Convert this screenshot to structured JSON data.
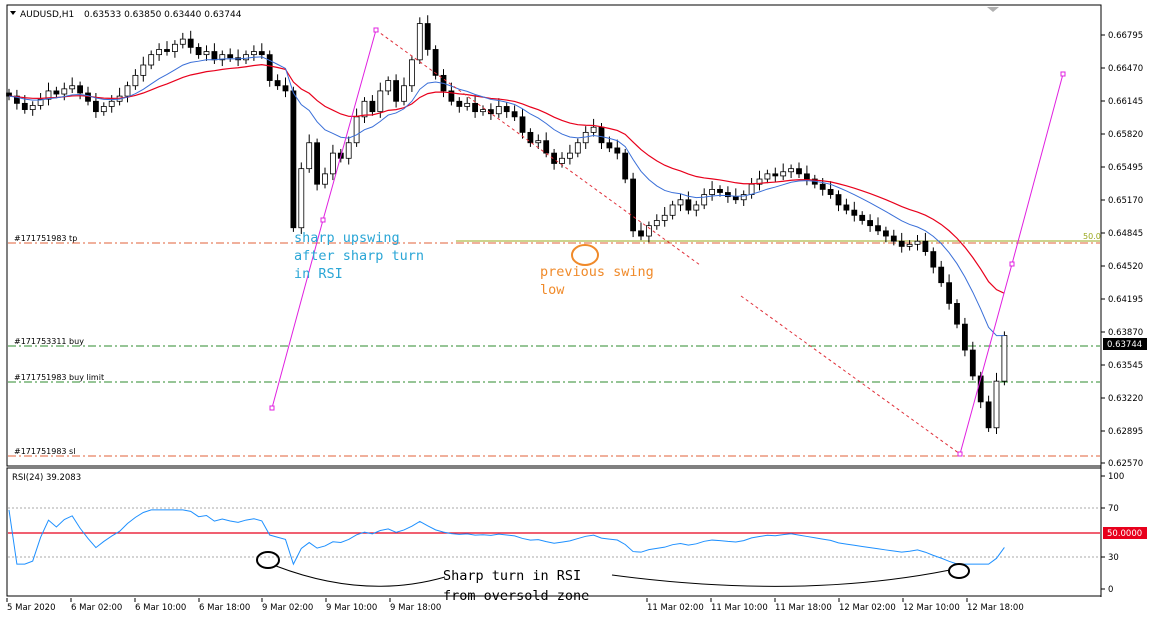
{
  "chart_header": {
    "symbol": "AUDUSD,H1",
    "ohlc": "0.63533 0.63850 0.63440 0.63744"
  },
  "colors": {
    "bull_candle": "#ffffff",
    "bear_candle": "#000000",
    "ma_fast": "#3a6fd8",
    "ma_slow": "#e8001c",
    "rsi_line": "#1e90ff",
    "rsi_50_line": "#e8001c",
    "order_tp_sl": "#e0603a",
    "order_buy": "#2e8b2e",
    "fib_line": "#9aa81e",
    "annotation_blue": "#2aa6d6",
    "annotation_orange": "#f08a2a",
    "trendline_magenta": "#e020e0",
    "trendline_red_dotted": "#e0303a"
  },
  "price_axis": {
    "labels": [
      "0.66795",
      "0.66470",
      "0.66145",
      "0.65820",
      "0.65495",
      "0.65170",
      "0.64845",
      "0.64520",
      "0.64195",
      "0.63870",
      "0.63545",
      "0.63220",
      "0.62895",
      "0.62570"
    ],
    "current_price": "0.63744"
  },
  "time_axis": {
    "labels": [
      "5 Mar 2020",
      "6 Mar 02:00",
      "6 Mar 10:00",
      "6 Mar 18:00",
      "9 Mar 02:00",
      "9 Mar 10:00",
      "9 Mar 18:00",
      "11 Mar 02:00",
      "11 Mar 10:00",
      "11 Mar 18:00",
      "12 Mar 02:00",
      "12 Mar 10:00",
      "12 Mar 18:00"
    ]
  },
  "orders": {
    "tp": "#171751983 tp",
    "buy": "#171753311 buy",
    "buy_limit": "#171751983 buy limit",
    "sl": "#171751983 sl"
  },
  "fib_level": "50.0",
  "annotations": {
    "upswing": [
      "sharp upswing",
      "after sharp turn",
      "in RSI"
    ],
    "swing_low": [
      "previous swing",
      "low"
    ],
    "rsi_turn": [
      "Sharp turn in RSI",
      "from oversold zone"
    ]
  },
  "rsi_panel": {
    "title": "RSI(24) 39.2083",
    "levels": [
      "100",
      "70",
      "30",
      "0"
    ],
    "level_50_badge": "50.0000"
  },
  "chart_data": {
    "type": "candlestick",
    "title": "AUDUSD,H1",
    "y_range": [
      0.6252,
      0.669
    ],
    "close_series": [
      0.6605,
      0.6598,
      0.6592,
      0.6596,
      0.6602,
      0.661,
      0.6607,
      0.6612,
      0.6615,
      0.6608,
      0.66,
      0.659,
      0.6595,
      0.66,
      0.6605,
      0.6615,
      0.6625,
      0.6635,
      0.6645,
      0.665,
      0.6648,
      0.6655,
      0.666,
      0.6652,
      0.6645,
      0.6648,
      0.664,
      0.6645,
      0.6642,
      0.664,
      0.6645,
      0.6648,
      0.6645,
      0.662,
      0.6615,
      0.661,
      0.6478,
      0.6535,
      0.656,
      0.652,
      0.653,
      0.655,
      0.6545,
      0.656,
      0.6585,
      0.66,
      0.659,
      0.661,
      0.662,
      0.66,
      0.6615,
      0.664,
      0.6675,
      0.665,
      0.6625,
      0.661,
      0.66,
      0.6595,
      0.6598,
      0.659,
      0.6592,
      0.6588,
      0.6595,
      0.659,
      0.6585,
      0.657,
      0.656,
      0.6562,
      0.655,
      0.654,
      0.6545,
      0.655,
      0.656,
      0.657,
      0.6575,
      0.656,
      0.6555,
      0.655,
      0.6525,
      0.6475,
      0.647,
      0.648,
      0.6485,
      0.649,
      0.65,
      0.6505,
      0.6495,
      0.65,
      0.651,
      0.6515,
      0.6512,
      0.6508,
      0.6505,
      0.651,
      0.652,
      0.6525,
      0.653,
      0.6528,
      0.6532,
      0.6535,
      0.653,
      0.6525,
      0.652,
      0.6515,
      0.651,
      0.65,
      0.6495,
      0.649,
      0.6485,
      0.648,
      0.6475,
      0.647,
      0.6465,
      0.646,
      0.6462,
      0.6465,
      0.6455,
      0.644,
      0.6425,
      0.6405,
      0.6385,
      0.636,
      0.6335,
      0.631,
      0.6285,
      0.633,
      0.6374
    ]
  }
}
